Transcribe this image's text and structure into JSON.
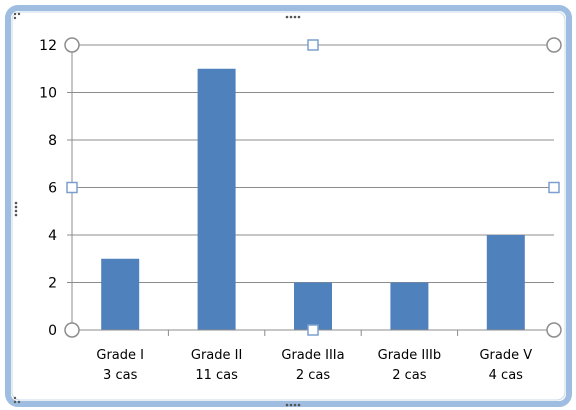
{
  "chart_data": {
    "type": "bar",
    "categories": [
      [
        "Grade I",
        "3 cas"
      ],
      [
        "Grade II",
        "11 cas"
      ],
      [
        "Grade IIIa",
        "2 cas"
      ],
      [
        "Grade IIIb",
        "2 cas"
      ],
      [
        "Grade V",
        "4 cas"
      ]
    ],
    "values": [
      3,
      11,
      2,
      2,
      4
    ],
    "y_ticks": [
      "0",
      "2",
      "4",
      "6",
      "8",
      "10",
      "12"
    ],
    "ylim": [
      0,
      12
    ],
    "grid": true,
    "legend": "none",
    "bar_color": "#4f81bd",
    "frame_color": "#a9c4e0"
  }
}
